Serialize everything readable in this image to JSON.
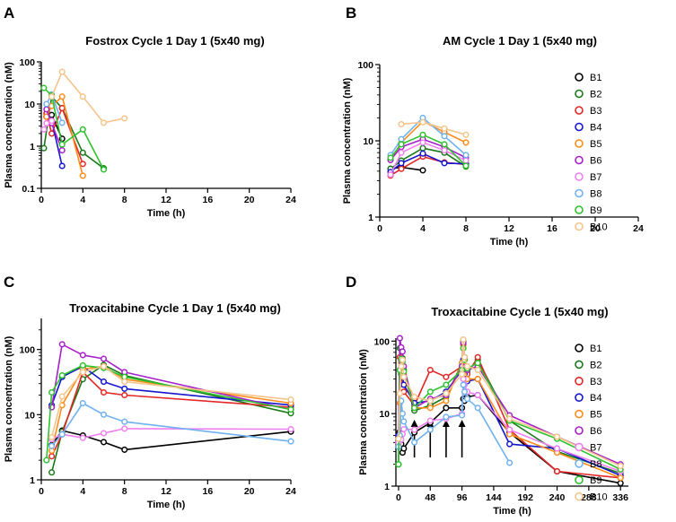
{
  "figure": {
    "panels": [
      "A",
      "B",
      "C",
      "D"
    ]
  },
  "chart_data": [
    {
      "panel": "A",
      "type": "line",
      "title": "Fostrox Cycle 1 Day 1 (5x40 mg)",
      "xlabel": "Time (h)",
      "ylabel": "Plasma concentration (nM)",
      "yscale": "log",
      "xlim": [
        0,
        24
      ],
      "ylim": [
        0.1,
        100
      ],
      "xticks": [
        0,
        4,
        8,
        12,
        16,
        20,
        24
      ],
      "yticks": [
        0.1,
        1,
        10,
        100
      ],
      "ytick_labels": [
        "0.1",
        "1",
        "10",
        "100"
      ],
      "series": [
        {
          "name": "B1",
          "color": "#000000",
          "x": [
            0.5,
            1,
            2
          ],
          "y": [
            5,
            5.5,
            1.5
          ]
        },
        {
          "name": "B2",
          "color": "#1a7a1a",
          "x": [
            0.25,
            1,
            2,
            4,
            6
          ],
          "y": [
            0.9,
            15,
            8,
            0.7,
            0.3
          ]
        },
        {
          "name": "B3",
          "color": "#e32626",
          "x": [
            0.5,
            1,
            2,
            4
          ],
          "y": [
            6,
            2,
            8,
            0.38
          ]
        },
        {
          "name": "B4",
          "color": "#1515d0",
          "x": [
            0.5,
            1,
            2
          ],
          "y": [
            5,
            4,
            0.34
          ]
        },
        {
          "name": "B5",
          "color": "#ff8c1a",
          "x": [
            0.5,
            1,
            2,
            4
          ],
          "y": [
            5,
            9,
            15,
            0.2
          ]
        },
        {
          "name": "B6",
          "color": "#a620c8",
          "x": [
            0.5,
            1,
            2
          ],
          "y": [
            7.5,
            3.5,
            0.8
          ]
        },
        {
          "name": "B7",
          "color": "#f080f0",
          "x": [
            0.25,
            0.5,
            1
          ],
          "y": [
            2.5,
            3.5,
            4
          ]
        },
        {
          "name": "B8",
          "color": "#6fb2ef",
          "x": [
            0.5,
            1,
            2
          ],
          "y": [
            10,
            17,
            3.6
          ]
        },
        {
          "name": "B9",
          "color": "#2ec22e",
          "x": [
            0.25,
            1,
            2,
            4,
            6
          ],
          "y": [
            24,
            16,
            1.1,
            2.5,
            0.28
          ]
        },
        {
          "name": "B10",
          "color": "#f5c48a",
          "x": [
            1,
            2,
            4,
            6,
            8
          ],
          "y": [
            15,
            58,
            15,
            3.6,
            4.6
          ]
        }
      ]
    },
    {
      "panel": "B",
      "type": "line",
      "title": "AM Cycle 1 Day 1 (5x40 mg)",
      "xlabel": "Time (h)",
      "ylabel": "Plasma concentration (nM)",
      "yscale": "log",
      "xlim": [
        0,
        24
      ],
      "ylim": [
        1,
        100
      ],
      "xticks": [
        0,
        4,
        8,
        12,
        16,
        20,
        24
      ],
      "yticks": [
        1,
        10,
        100
      ],
      "ytick_labels": [
        "1",
        "10",
        "100"
      ],
      "series": [
        {
          "name": "B1",
          "color": "#000000",
          "x": [
            1,
            2,
            4
          ],
          "y": [
            4.3,
            4.5,
            4.1
          ]
        },
        {
          "name": "B2",
          "color": "#1a7a1a",
          "x": [
            1,
            2,
            4,
            6,
            8
          ],
          "y": [
            4.3,
            5.5,
            8,
            7,
            4.6
          ]
        },
        {
          "name": "B3",
          "color": "#e32626",
          "x": [
            1,
            2,
            4,
            6,
            8
          ],
          "y": [
            3.5,
            4.3,
            6.2,
            5.2,
            4.9
          ]
        },
        {
          "name": "B4",
          "color": "#1515d0",
          "x": [
            1,
            2,
            4,
            6,
            8
          ],
          "y": [
            3.9,
            5.1,
            6.8,
            5.1,
            5
          ]
        },
        {
          "name": "B5",
          "color": "#ff8c1a",
          "x": [
            1,
            2,
            4,
            6,
            8
          ],
          "y": [
            5.6,
            9.5,
            18,
            13,
            9.5
          ]
        },
        {
          "name": "B6",
          "color": "#a620c8",
          "x": [
            1,
            2,
            4,
            6,
            8
          ],
          "y": [
            5.6,
            8.3,
            10.5,
            8.3,
            6
          ]
        },
        {
          "name": "B7",
          "color": "#f080f0",
          "x": [
            1,
            2,
            4,
            6,
            8
          ],
          "y": [
            3.6,
            7,
            9.5,
            7.5,
            5.5
          ]
        },
        {
          "name": "B8",
          "color": "#6fb2ef",
          "x": [
            1,
            2,
            4,
            6,
            8
          ],
          "y": [
            6.5,
            10.5,
            20,
            11.5,
            6.5
          ]
        },
        {
          "name": "B9",
          "color": "#2ec22e",
          "x": [
            1,
            2,
            4,
            6,
            8
          ],
          "y": [
            6,
            9,
            12,
            9,
            4.7
          ]
        },
        {
          "name": "B10",
          "color": "#f5c48a",
          "x": [
            2,
            4,
            6,
            8
          ],
          "y": [
            16.5,
            17.5,
            14.5,
            12
          ]
        }
      ],
      "legend": {
        "placement": "right",
        "entries": [
          "B1",
          "B2",
          "B3",
          "B4",
          "B5",
          "B6",
          "B7",
          "B8",
          "B9",
          "B10"
        ]
      }
    },
    {
      "panel": "C",
      "type": "line",
      "title": "Troxacitabine Cycle 1 Day 1 (5x40 mg)",
      "xlabel": "Time (h)",
      "ylabel": "Plasma concentration (nM)",
      "yscale": "log",
      "xlim": [
        0,
        24
      ],
      "ylim": [
        1,
        300
      ],
      "xticks": [
        0,
        4,
        8,
        12,
        16,
        20,
        24
      ],
      "yticks": [
        1,
        10,
        100
      ],
      "ytick_labels": [
        "1",
        "10",
        "100"
      ],
      "series": [
        {
          "name": "B1",
          "color": "#000000",
          "x": [
            1,
            2,
            4,
            6,
            8,
            24
          ],
          "y": [
            3.4,
            5.7,
            4.8,
            3.8,
            2.9,
            5.5
          ]
        },
        {
          "name": "B2",
          "color": "#1a7a1a",
          "x": [
            1,
            2,
            4,
            6,
            8,
            24
          ],
          "y": [
            1.3,
            5.5,
            35,
            58,
            40,
            10.5
          ]
        },
        {
          "name": "B3",
          "color": "#e32626",
          "x": [
            1,
            2,
            4,
            6,
            8,
            24
          ],
          "y": [
            2.3,
            5,
            45,
            22,
            20,
            13
          ]
        },
        {
          "name": "B4",
          "color": "#1515d0",
          "x": [
            1,
            2,
            4,
            6,
            8,
            24
          ],
          "y": [
            14,
            38,
            55,
            32,
            25,
            14
          ]
        },
        {
          "name": "B5",
          "color": "#ff8c1a",
          "x": [
            1,
            2,
            4,
            6,
            8,
            24
          ],
          "y": [
            2.8,
            14,
            50,
            55,
            35,
            15
          ]
        },
        {
          "name": "B6",
          "color": "#a620c8",
          "x": [
            1,
            2,
            4,
            6,
            8,
            24
          ],
          "y": [
            13,
            120,
            82,
            72,
            45,
            12
          ]
        },
        {
          "name": "B7",
          "color": "#f080f0",
          "x": [
            1,
            2,
            4,
            6,
            8,
            24
          ],
          "y": [
            4.2,
            5,
            4.4,
            5.2,
            6.1,
            6
          ]
        },
        {
          "name": "B8",
          "color": "#6fb2ef",
          "x": [
            1,
            2,
            4,
            6,
            8,
            24
          ],
          "y": [
            3.3,
            5,
            15,
            10,
            7.8,
            3.9
          ]
        },
        {
          "name": "B9",
          "color": "#2ec22e",
          "x": [
            0.5,
            1,
            2,
            4,
            6,
            8,
            24
          ],
          "y": [
            2,
            22,
            40,
            57,
            52,
            38,
            12
          ]
        },
        {
          "name": "B10",
          "color": "#f5c48a",
          "x": [
            1,
            2,
            4,
            6,
            8,
            24
          ],
          "y": [
            4.5,
            19,
            45,
            55,
            32,
            17
          ]
        }
      ]
    },
    {
      "panel": "D",
      "type": "line",
      "title": "Troxacitabine Cycle 1 (5x40 mg)",
      "xlabel": "Time (h)",
      "ylabel": "Plasma concentration (nM)",
      "yscale": "log",
      "xlim": [
        -4,
        348
      ],
      "ylim": [
        1,
        110
      ],
      "xticks": [
        0,
        48,
        96,
        144,
        192,
        240,
        288,
        336
      ],
      "yticks": [
        1,
        10,
        100
      ],
      "ytick_labels": [
        "1",
        "10",
        "100"
      ],
      "dosing_arrows_x": [
        24,
        48,
        72,
        96
      ],
      "series": [
        {
          "name": "B1",
          "color": "#000000",
          "x": [
            0,
            1,
            2,
            4,
            6,
            8,
            24,
            48,
            72,
            96,
            98,
            100,
            104,
            120,
            168,
            240,
            336
          ],
          "y": [
            3.5,
            5.5,
            4.8,
            3.8,
            2.9,
            3.3,
            5.5,
            7.5,
            12,
            12,
            16,
            15,
            17,
            18,
            5.5,
            1.6,
            1.1
          ]
        },
        {
          "name": "B2",
          "color": "#1a7a1a",
          "x": [
            0,
            2,
            4,
            6,
            8,
            24,
            48,
            72,
            96,
            98,
            100,
            104,
            120,
            168,
            240,
            336
          ],
          "y": [
            2,
            80,
            35,
            58,
            40,
            11,
            13,
            17,
            50,
            100,
            60,
            38,
            55,
            8,
            3,
            1.5
          ]
        },
        {
          "name": "B3",
          "color": "#e32626",
          "x": [
            0,
            2,
            4,
            6,
            8,
            24,
            48,
            72,
            96,
            98,
            100,
            104,
            120,
            168,
            240,
            336
          ],
          "y": [
            3.6,
            60,
            45,
            22,
            20,
            13,
            40,
            32,
            45,
            90,
            55,
            35,
            60,
            6,
            1.6,
            1.3
          ]
        },
        {
          "name": "B4",
          "color": "#1515d0",
          "x": [
            0,
            2,
            4,
            6,
            8,
            24,
            48,
            72,
            96,
            98,
            100,
            104,
            120,
            168,
            240,
            336
          ],
          "y": [
            5,
            40,
            55,
            32,
            25,
            14,
            15,
            20,
            40,
            55,
            35,
            28,
            30,
            3.8,
            3.3,
            1.4
          ]
        },
        {
          "name": "B5",
          "color": "#ff8c1a",
          "x": [
            0,
            2,
            4,
            6,
            8,
            24,
            48,
            72,
            96,
            98,
            100,
            104,
            120,
            168,
            240,
            336
          ],
          "y": [
            4,
            14,
            50,
            55,
            35,
            12,
            12,
            15,
            50,
            80,
            45,
            30,
            30,
            5.2,
            2.9,
            1.3
          ]
        },
        {
          "name": "B6",
          "color": "#a620c8",
          "x": [
            0,
            2,
            4,
            6,
            8,
            24,
            48,
            72,
            96,
            98,
            100,
            104,
            120,
            168,
            240,
            336
          ],
          "y": [
            4,
            110,
            82,
            72,
            45,
            12,
            16,
            18,
            45,
            95,
            60,
            40,
            45,
            9.5,
            4.8,
            2
          ]
        },
        {
          "name": "B7",
          "color": "#f080f0",
          "x": [
            0,
            2,
            4,
            6,
            8,
            24,
            48,
            72,
            96,
            98,
            100,
            104,
            120,
            168,
            240,
            336
          ],
          "y": [
            4,
            5,
            4.4,
            5.2,
            6.1,
            6,
            8,
            8.5,
            10,
            30,
            25,
            20,
            18,
            6,
            3.3,
            1.6
          ]
        },
        {
          "name": "B8",
          "color": "#6fb2ef",
          "x": [
            0,
            2,
            4,
            6,
            8,
            24,
            48,
            72,
            96,
            98,
            100,
            104,
            120,
            168
          ],
          "y": [
            3.5,
            5,
            15,
            10,
            7.8,
            4,
            6,
            9,
            9.5,
            25,
            20,
            16,
            12,
            2.1
          ]
        },
        {
          "name": "B9",
          "color": "#2ec22e",
          "x": [
            0,
            2,
            4,
            6,
            8,
            24,
            48,
            72,
            96,
            98,
            100,
            104,
            120,
            168,
            240,
            336
          ],
          "y": [
            2,
            40,
            57,
            52,
            38,
            12,
            20,
            25,
            40,
            80,
            55,
            42,
            50,
            8,
            4.5,
            1.7
          ]
        },
        {
          "name": "B10",
          "color": "#f5c48a",
          "x": [
            0,
            2,
            4,
            6,
            8,
            24,
            48,
            72,
            96,
            98,
            100,
            104,
            120,
            168,
            240,
            336
          ],
          "y": [
            4.5,
            19,
            45,
            55,
            32,
            17,
            15,
            19,
            35,
            105,
            60,
            45,
            40,
            8.5,
            4.8,
            1.9
          ]
        }
      ],
      "legend": {
        "placement": "right",
        "entries": [
          "B1",
          "B2",
          "B3",
          "B4",
          "B5",
          "B6",
          "B7",
          "B8",
          "B9",
          "B10"
        ]
      }
    }
  ]
}
